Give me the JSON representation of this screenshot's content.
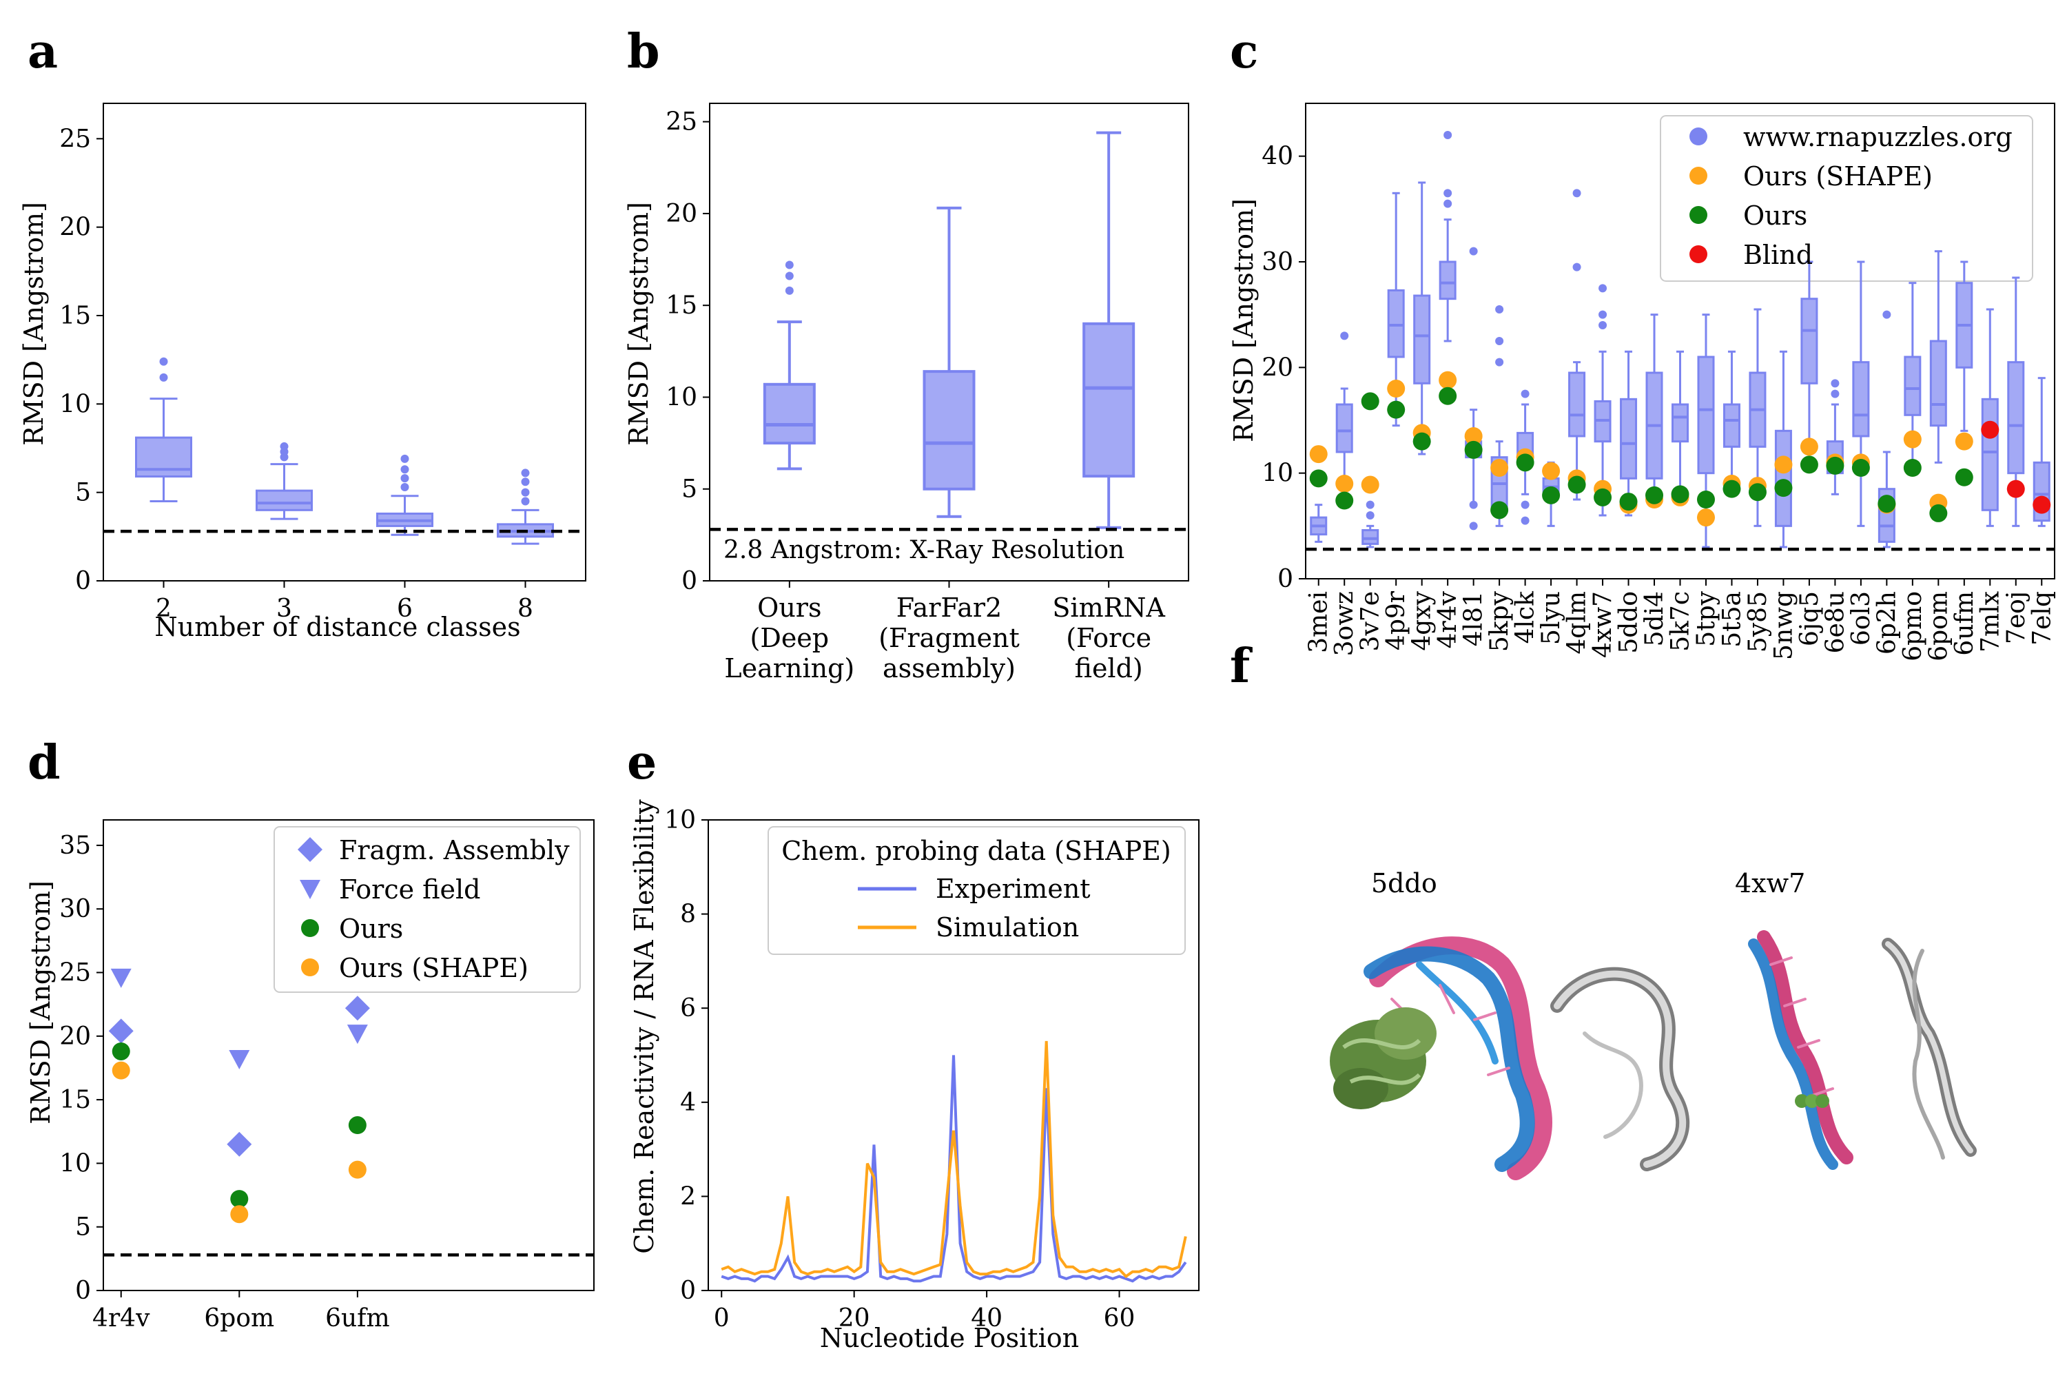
{
  "panel_labels": {
    "a": "a",
    "b": "b",
    "c": "c",
    "d": "d",
    "e": "e",
    "f": "f"
  },
  "colors": {
    "puzzles": "#7b84f0",
    "box_fill": "#a3a9f5",
    "ours_shape": "#ffa51a",
    "ours": "#0f8512",
    "blind": "#ee1111",
    "experiment": "#6b76ee",
    "simulation": "#ffa51a"
  },
  "chart_data": [
    {
      "panel": "a",
      "type": "box",
      "xlabel": "Number of distance classes",
      "ylabel": "RMSD [Angstrom]",
      "ylim": [
        0,
        27
      ],
      "yticks": [
        0,
        5,
        10,
        15,
        20,
        25
      ],
      "categories": [
        "2",
        "3",
        "6",
        "8"
      ],
      "boxes": [
        {
          "label": "2",
          "q1": 5.9,
          "med": 6.3,
          "q3": 8.1,
          "wlo": 4.5,
          "whi": 10.3,
          "fliers": [
            11.5,
            12.4
          ]
        },
        {
          "label": "3",
          "q1": 4.0,
          "med": 4.4,
          "q3": 5.1,
          "wlo": 3.5,
          "whi": 6.6,
          "fliers": [
            7.0,
            7.3,
            7.6
          ]
        },
        {
          "label": "6",
          "q1": 3.1,
          "med": 3.4,
          "q3": 3.8,
          "wlo": 2.6,
          "whi": 4.8,
          "fliers": [
            5.3,
            5.8,
            6.3,
            6.9
          ]
        },
        {
          "label": "8",
          "q1": 2.5,
          "med": 2.8,
          "q3": 3.2,
          "wlo": 2.1,
          "whi": 4.0,
          "fliers": [
            4.5,
            5.0,
            5.6,
            6.1
          ]
        }
      ],
      "ref_line": 2.8
    },
    {
      "panel": "b",
      "type": "box",
      "ylabel": "RMSD [Angstrom]",
      "ylim": [
        0,
        26
      ],
      "yticks": [
        0,
        5,
        10,
        15,
        20,
        25
      ],
      "categories": [
        [
          "Ours",
          "(Deep",
          "Learning)"
        ],
        [
          "FarFar2",
          "(Fragment",
          "assembly)"
        ],
        [
          "SimRNA",
          "(Force",
          "field)"
        ]
      ],
      "boxes": [
        {
          "q1": 7.5,
          "med": 8.5,
          "q3": 10.7,
          "wlo": 6.1,
          "whi": 14.1,
          "fliers": [
            15.8,
            16.6,
            17.2
          ]
        },
        {
          "q1": 5.0,
          "med": 7.5,
          "q3": 11.4,
          "wlo": 3.5,
          "whi": 20.3,
          "fliers": []
        },
        {
          "q1": 5.7,
          "med": 10.5,
          "q3": 14.0,
          "wlo": 2.9,
          "whi": 24.4,
          "fliers": []
        }
      ],
      "ref_line": 2.8,
      "annotation": "2.8 Angstrom: X-Ray Resolution"
    },
    {
      "panel": "c",
      "type": "box",
      "ylabel": "RMSD [Angstrom]",
      "ylim": [
        0,
        45
      ],
      "yticks": [
        0,
        10,
        20,
        30,
        40
      ],
      "legend": [
        "www.rnapuzzles.org",
        "Ours (SHAPE)",
        "Ours",
        "Blind"
      ],
      "legend_position": "top-right",
      "ref_line": 2.8,
      "categories": [
        "3mei",
        "3owz",
        "3v7e",
        "4p9r",
        "4gxy",
        "4r4v",
        "4l81",
        "5kpy",
        "4lck",
        "5lyu",
        "4qlm",
        "4xw7",
        "5ddo",
        "5di4",
        "5k7c",
        "5tpy",
        "5t5a",
        "5y85",
        "5nwg",
        "6jq5",
        "6e8u",
        "6ol3",
        "6p2h",
        "6pmo",
        "6pom",
        "6ufm",
        "7mlx",
        "7eoj",
        "7elq"
      ],
      "boxes": [
        {
          "q1": 4.2,
          "med": 5.0,
          "q3": 5.8,
          "wlo": 3.5,
          "whi": 7.0,
          "fliers": []
        },
        {
          "q1": 12.0,
          "med": 14.0,
          "q3": 16.5,
          "wlo": 8.0,
          "whi": 18.0,
          "fliers": [
            23.0
          ]
        },
        {
          "q1": 3.3,
          "med": 3.8,
          "q3": 4.6,
          "wlo": 3.0,
          "whi": 5.0,
          "fliers": [
            6.0,
            7.0
          ]
        },
        {
          "q1": 21.0,
          "med": 24.0,
          "q3": 27.3,
          "wlo": 14.5,
          "whi": 36.5,
          "fliers": []
        },
        {
          "q1": 18.5,
          "med": 23.0,
          "q3": 26.8,
          "wlo": 11.8,
          "whi": 37.5,
          "fliers": []
        },
        {
          "q1": 26.5,
          "med": 28.0,
          "q3": 30.0,
          "wlo": 22.5,
          "whi": 34.0,
          "fliers": [
            35.5,
            36.5,
            42.0
          ]
        },
        {
          "q1": 11.5,
          "med": 12.3,
          "q3": 13.0,
          "wlo": 7.0,
          "whi": 16.0,
          "fliers": [
            5.0,
            7.0,
            31.0
          ]
        },
        {
          "q1": 6.5,
          "med": 9.0,
          "q3": 11.5,
          "wlo": 5.0,
          "whi": 13.0,
          "fliers": [
            20.5,
            22.5,
            25.5
          ]
        },
        {
          "q1": 11.0,
          "med": 12.0,
          "q3": 13.8,
          "wlo": 8.0,
          "whi": 16.5,
          "fliers": [
            5.5,
            7.0,
            17.5
          ]
        },
        {
          "q1": 8.0,
          "med": 8.7,
          "q3": 9.5,
          "wlo": 5.0,
          "whi": 11.0,
          "fliers": []
        },
        {
          "q1": 13.5,
          "med": 15.5,
          "q3": 19.5,
          "wlo": 7.5,
          "whi": 20.5,
          "fliers": [
            29.5,
            36.5
          ]
        },
        {
          "q1": 13.0,
          "med": 15.0,
          "q3": 16.8,
          "wlo": 6.0,
          "whi": 21.5,
          "fliers": [
            24.0,
            25.0,
            27.5
          ]
        },
        {
          "q1": 9.5,
          "med": 12.8,
          "q3": 17.0,
          "wlo": 6.0,
          "whi": 21.5,
          "fliers": []
        },
        {
          "q1": 9.5,
          "med": 14.5,
          "q3": 19.5,
          "wlo": 7.0,
          "whi": 25.0,
          "fliers": []
        },
        {
          "q1": 13.0,
          "med": 15.3,
          "q3": 16.5,
          "wlo": 8.0,
          "whi": 21.5,
          "fliers": []
        },
        {
          "q1": 10.0,
          "med": 16.0,
          "q3": 21.0,
          "wlo": 3.0,
          "whi": 25.0,
          "fliers": []
        },
        {
          "q1": 12.5,
          "med": 15.0,
          "q3": 16.5,
          "wlo": 8.0,
          "whi": 21.5,
          "fliers": []
        },
        {
          "q1": 12.5,
          "med": 16.0,
          "q3": 19.5,
          "wlo": 5.0,
          "whi": 25.5,
          "fliers": []
        },
        {
          "q1": 5.0,
          "med": 9.0,
          "q3": 14.0,
          "wlo": 3.0,
          "whi": 21.5,
          "fliers": []
        },
        {
          "q1": 18.5,
          "med": 23.5,
          "q3": 26.5,
          "wlo": 12.5,
          "whi": 30.0,
          "fliers": []
        },
        {
          "q1": 10.0,
          "med": 11.5,
          "q3": 13.0,
          "wlo": 8.0,
          "whi": 16.5,
          "fliers": [
            17.5,
            18.5
          ]
        },
        {
          "q1": 13.5,
          "med": 15.5,
          "q3": 20.5,
          "wlo": 5.0,
          "whi": 30.0,
          "fliers": []
        },
        {
          "q1": 3.5,
          "med": 5.0,
          "q3": 8.5,
          "wlo": 3.0,
          "whi": 12.0,
          "fliers": [
            25.0
          ]
        },
        {
          "q1": 15.5,
          "med": 18.0,
          "q3": 21.0,
          "wlo": 10.0,
          "whi": 28.0,
          "fliers": []
        },
        {
          "q1": 14.5,
          "med": 16.5,
          "q3": 22.5,
          "wlo": 11.0,
          "whi": 31.0,
          "fliers": []
        },
        {
          "q1": 20.0,
          "med": 24.0,
          "q3": 28.0,
          "wlo": 14.0,
          "whi": 30.0,
          "fliers": []
        },
        {
          "q1": 6.5,
          "med": 12.0,
          "q3": 17.0,
          "wlo": 5.0,
          "whi": 25.5,
          "fliers": []
        },
        {
          "q1": 10.0,
          "med": 14.5,
          "q3": 20.5,
          "wlo": 5.0,
          "whi": 28.5,
          "fliers": []
        },
        {
          "q1": 5.5,
          "med": 8.0,
          "q3": 11.0,
          "wlo": 5.0,
          "whi": 19.0,
          "fliers": []
        }
      ],
      "ours_shape": [
        11.8,
        9.0,
        8.9,
        18.0,
        13.8,
        18.8,
        13.5,
        10.5,
        11.5,
        10.2,
        9.5,
        8.5,
        7.0,
        7.5,
        7.7,
        5.8,
        9.0,
        8.8,
        10.8,
        12.5,
        11.0,
        11.0,
        7.0,
        13.2,
        7.2,
        13.0,
        null,
        null,
        null
      ],
      "ours": [
        9.5,
        7.4,
        16.8,
        16.0,
        13.0,
        17.3,
        12.2,
        6.5,
        11.0,
        7.9,
        8.9,
        7.7,
        7.3,
        7.9,
        8.0,
        7.5,
        8.5,
        8.2,
        8.6,
        10.8,
        10.7,
        10.5,
        7.1,
        10.5,
        6.2,
        9.6,
        null,
        null,
        null
      ],
      "blind": [
        null,
        null,
        null,
        null,
        null,
        null,
        null,
        null,
        null,
        null,
        null,
        null,
        null,
        null,
        null,
        null,
        null,
        null,
        null,
        null,
        null,
        null,
        null,
        null,
        null,
        null,
        14.1,
        8.5,
        7.0
      ]
    },
    {
      "panel": "d",
      "type": "scatter",
      "ylabel": "RMSD [Angstrom]",
      "ylim": [
        0,
        37
      ],
      "yticks": [
        0,
        5,
        10,
        15,
        20,
        25,
        30,
        35
      ],
      "categories": [
        "4r4v",
        "6pom",
        "6ufm"
      ],
      "series": [
        {
          "name": "Fragm. Assembly",
          "values": [
            20.4,
            11.5,
            22.2
          ]
        },
        {
          "name": "Force field",
          "values": [
            24.6,
            18.2,
            20.2
          ]
        },
        {
          "name": "Ours",
          "values": [
            18.8,
            7.2,
            13.0
          ]
        },
        {
          "name": "Ours (SHAPE)",
          "values": [
            17.3,
            6.0,
            9.5
          ]
        }
      ],
      "legend_position": "top-right",
      "ref_line": 2.8
    },
    {
      "panel": "e",
      "type": "line",
      "xlabel": "Nucleotide Position",
      "ylabel": "Chem. Reactivity / RNA Flexibility",
      "xlim": [
        -2,
        72
      ],
      "ylim": [
        0,
        10
      ],
      "xticks": [
        0,
        20,
        40,
        60
      ],
      "yticks": [
        0,
        2,
        4,
        6,
        8,
        10
      ],
      "legend_title": "Chem. probing data (SHAPE)",
      "legend_position": "top-right",
      "series": [
        {
          "name": "Experiment",
          "values": [
            0.3,
            0.25,
            0.3,
            0.25,
            0.25,
            0.2,
            0.3,
            0.3,
            0.25,
            0.45,
            0.7,
            0.3,
            0.25,
            0.3,
            0.25,
            0.3,
            0.3,
            0.3,
            0.3,
            0.3,
            0.25,
            0.3,
            0.4,
            3.1,
            0.3,
            0.25,
            0.3,
            0.25,
            0.25,
            0.2,
            0.2,
            0.25,
            0.3,
            0.3,
            1.2,
            5.0,
            1.0,
            0.4,
            0.3,
            0.25,
            0.3,
            0.3,
            0.25,
            0.3,
            0.3,
            0.3,
            0.35,
            0.4,
            0.6,
            4.3,
            1.2,
            0.3,
            0.25,
            0.3,
            0.3,
            0.25,
            0.3,
            0.25,
            0.3,
            0.25,
            0.3,
            0.25,
            0.2,
            0.3,
            0.25,
            0.3,
            0.25,
            0.3,
            0.3,
            0.4,
            0.6
          ]
        },
        {
          "name": "Simulation",
          "values": [
            0.45,
            0.5,
            0.4,
            0.45,
            0.4,
            0.35,
            0.4,
            0.4,
            0.45,
            1.0,
            2.0,
            0.6,
            0.4,
            0.35,
            0.4,
            0.4,
            0.45,
            0.4,
            0.45,
            0.5,
            0.4,
            0.5,
            2.7,
            2.4,
            0.6,
            0.4,
            0.4,
            0.45,
            0.4,
            0.35,
            0.4,
            0.45,
            0.5,
            0.55,
            2.0,
            3.4,
            1.8,
            0.6,
            0.4,
            0.35,
            0.35,
            0.4,
            0.4,
            0.45,
            0.4,
            0.45,
            0.5,
            0.6,
            2.0,
            5.3,
            1.6,
            0.7,
            0.5,
            0.5,
            0.4,
            0.4,
            0.45,
            0.4,
            0.45,
            0.4,
            0.45,
            0.3,
            0.4,
            0.4,
            0.45,
            0.4,
            0.5,
            0.5,
            0.45,
            0.5,
            1.15
          ]
        }
      ]
    }
  ],
  "panel_f": {
    "left_label": "5ddo",
    "right_label": "4xw7"
  }
}
